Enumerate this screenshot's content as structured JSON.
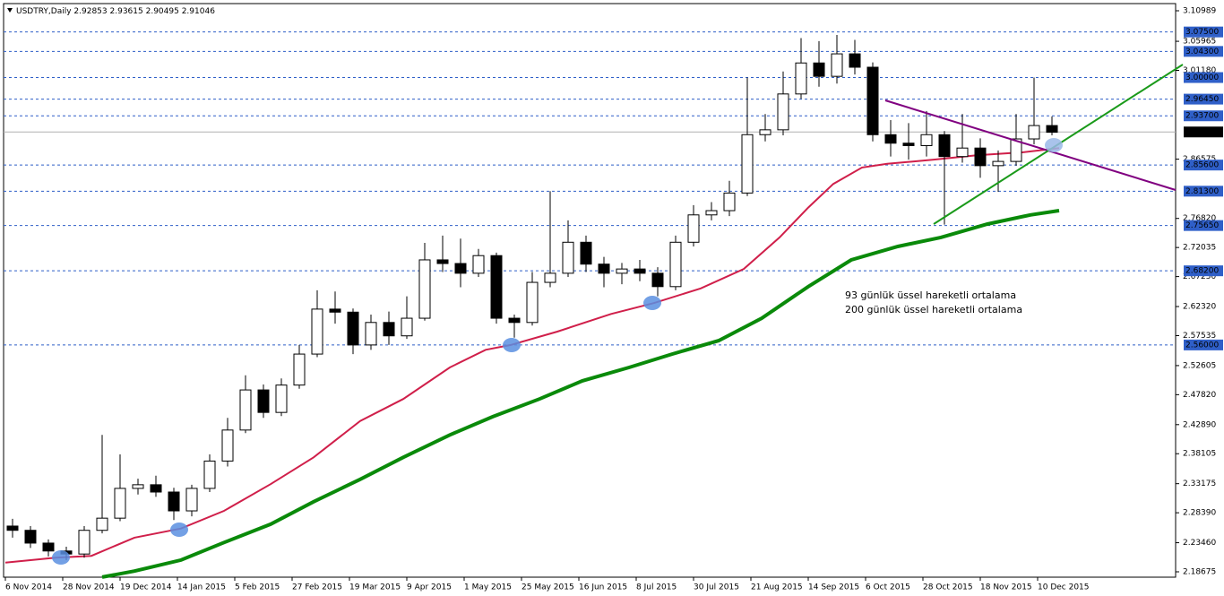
{
  "chart_data": {
    "type": "candlestick",
    "title": "USDTRY,Daily",
    "header_values": [
      2.92853,
      2.93615,
      2.90495,
      2.91046
    ],
    "x": [
      2,
      7,
      12,
      17,
      22,
      27,
      32,
      37,
      42,
      47,
      52,
      57,
      62,
      67,
      72,
      77,
      82,
      87,
      92,
      97,
      102,
      107,
      112,
      117,
      122,
      127,
      132,
      137,
      142,
      147,
      152,
      157,
      162,
      167,
      172,
      177,
      182,
      187,
      192,
      197,
      202,
      207,
      212,
      217,
      222,
      227,
      232,
      237,
      242,
      247,
      252,
      257,
      262,
      267,
      272,
      277,
      282,
      287,
      292
    ],
    "open": [
      2.262,
      2.255,
      2.234,
      2.221,
      2.216,
      2.255,
      2.275,
      2.324,
      2.33,
      2.318,
      2.287,
      2.324,
      2.369,
      2.42,
      2.486,
      2.449,
      2.494,
      2.545,
      2.619,
      2.614,
      2.56,
      2.597,
      2.575,
      2.604,
      2.7,
      2.694,
      2.678,
      2.707,
      2.604,
      2.597,
      2.663,
      2.678,
      2.729,
      2.693,
      2.678,
      2.685,
      2.678,
      2.656,
      2.729,
      2.774,
      2.781,
      2.81,
      2.906,
      2.914,
      2.973,
      3.024,
      3.002,
      3.039,
      3.017,
      2.906,
      2.892,
      2.888,
      2.906,
      2.87,
      2.884,
      2.855,
      2.862,
      2.899,
      2.921
    ],
    "high": [
      2.274,
      2.262,
      2.24,
      2.228,
      2.262,
      2.412,
      2.38,
      2.34,
      2.345,
      2.325,
      2.33,
      2.38,
      2.44,
      2.51,
      2.495,
      2.505,
      2.56,
      2.65,
      2.648,
      2.62,
      2.61,
      2.615,
      2.64,
      2.728,
      2.74,
      2.735,
      2.718,
      2.712,
      2.61,
      2.68,
      2.813,
      2.765,
      2.74,
      2.705,
      2.695,
      2.7,
      2.688,
      2.74,
      2.79,
      2.795,
      2.83,
      3.0,
      2.94,
      3.01,
      3.065,
      3.06,
      3.07,
      3.062,
      3.025,
      2.93,
      2.925,
      2.945,
      2.912,
      2.94,
      2.9,
      2.88,
      2.94,
      3.0,
      2.936
    ],
    "low": [
      2.243,
      2.226,
      2.212,
      2.206,
      2.21,
      2.25,
      2.27,
      2.314,
      2.31,
      2.272,
      2.278,
      2.318,
      2.36,
      2.415,
      2.44,
      2.443,
      2.488,
      2.54,
      2.595,
      2.545,
      2.552,
      2.56,
      2.57,
      2.6,
      2.68,
      2.655,
      2.672,
      2.595,
      2.572,
      2.592,
      2.655,
      2.672,
      2.68,
      2.655,
      2.66,
      2.665,
      2.64,
      2.65,
      2.722,
      2.765,
      2.772,
      2.805,
      2.895,
      2.905,
      2.965,
      2.985,
      2.99,
      3.005,
      2.895,
      2.87,
      2.865,
      2.87,
      2.758,
      2.86,
      2.835,
      2.812,
      2.855,
      2.89,
      2.905
    ],
    "close": [
      2.255,
      2.234,
      2.221,
      2.216,
      2.255,
      2.275,
      2.324,
      2.33,
      2.318,
      2.287,
      2.324,
      2.369,
      2.42,
      2.486,
      2.449,
      2.494,
      2.545,
      2.619,
      2.614,
      2.56,
      2.597,
      2.575,
      2.604,
      2.7,
      2.694,
      2.678,
      2.707,
      2.604,
      2.597,
      2.663,
      2.678,
      2.729,
      2.693,
      2.678,
      2.685,
      2.678,
      2.656,
      2.729,
      2.774,
      2.781,
      2.81,
      2.906,
      2.914,
      2.973,
      3.024,
      3.002,
      3.039,
      3.017,
      2.906,
      2.892,
      2.888,
      2.906,
      2.87,
      2.884,
      2.855,
      2.862,
      2.899,
      2.921,
      2.91
    ],
    "up_color": "#ffffff",
    "down_color": "#000000",
    "series": [
      {
        "name": "93 günlük üssel hareketli ortalama",
        "color": "#d01f4a",
        "x": [
          0,
          14,
          24,
          36,
          49,
          61,
          74,
          86,
          99,
          111,
          124,
          134,
          141,
          154,
          169,
          181,
          194,
          206,
          216,
          224,
          231,
          239,
          246,
          259,
          271,
          284,
          294
        ],
        "values": [
          2.202,
          2.21,
          2.213,
          2.243,
          2.258,
          2.287,
          2.331,
          2.375,
          2.435,
          2.471,
          2.523,
          2.552,
          2.56,
          2.582,
          2.611,
          2.629,
          2.653,
          2.685,
          2.737,
          2.786,
          2.825,
          2.852,
          2.858,
          2.865,
          2.872,
          2.877,
          2.884
        ]
      },
      {
        "name": "200 günlük üssel hareketli ortalama",
        "color": "#0a8a0a",
        "x": [
          27,
          36,
          49,
          61,
          74,
          86,
          99,
          111,
          124,
          136,
          149,
          161,
          174,
          186,
          199,
          211,
          224,
          236,
          249,
          261,
          274,
          286,
          294
        ],
        "values": [
          2.178,
          2.188,
          2.206,
          2.235,
          2.265,
          2.302,
          2.339,
          2.375,
          2.412,
          2.442,
          2.471,
          2.501,
          2.523,
          2.545,
          2.567,
          2.604,
          2.656,
          2.7,
          2.722,
          2.737,
          2.759,
          2.774,
          2.781
        ]
      }
    ],
    "xlim": [
      -0.5,
      326.5
    ],
    "ylim": [
      2.1779,
      3.1217
    ],
    "xticks": [
      {
        "value": 0,
        "label": "6 Nov 2014"
      },
      {
        "value": 16,
        "label": "28 Nov 2014"
      },
      {
        "value": 32,
        "label": "19 Dec 2014"
      },
      {
        "value": 48,
        "label": "14 Jan 2015"
      },
      {
        "value": 64,
        "label": "5 Feb 2015"
      },
      {
        "value": 80,
        "label": "27 Feb 2015"
      },
      {
        "value": 96,
        "label": "19 Mar 2015"
      },
      {
        "value": 112,
        "label": "9 Apr 2015"
      },
      {
        "value": 128,
        "label": "1 May 2015"
      },
      {
        "value": 144,
        "label": "25 May 2015"
      },
      {
        "value": 160,
        "label": "16 Jun 2015"
      },
      {
        "value": 176,
        "label": "8 Jul 2015"
      },
      {
        "value": 192,
        "label": "30 Jul 2015"
      },
      {
        "value": 208,
        "label": "21 Aug 2015"
      },
      {
        "value": 224,
        "label": "14 Sep 2015"
      },
      {
        "value": 240,
        "label": "6 Oct 2015"
      },
      {
        "value": 256,
        "label": "28 Oct 2015"
      },
      {
        "value": 272,
        "label": "18 Nov 2015"
      },
      {
        "value": 288,
        "label": "10 Dec 2015"
      }
    ],
    "yticks": [
      3.10989,
      3.05965,
      {
        "value": 3.0118,
        "label": "3.01180"
      },
      2.86575,
      {
        "value": 2.7682,
        "label": "2.76820"
      },
      2.72035,
      {
        "value": 2.6725,
        "label": "2.67250"
      },
      {
        "value": 2.6232,
        "label": "2.62320"
      },
      2.57535,
      2.52605,
      {
        "value": 2.4782,
        "label": "2.47820"
      },
      {
        "value": 2.4289,
        "label": "2.42890"
      },
      2.38105,
      2.33175,
      {
        "value": 2.2839,
        "label": "2.28390"
      },
      {
        "value": 2.2346,
        "label": "2.23460"
      },
      2.18675
    ],
    "levels": [
      {
        "value": 3.075,
        "label": "3.07500"
      },
      {
        "value": 3.043,
        "label": "3.04300"
      },
      {
        "value": 3.0,
        "label": "3.00000"
      },
      {
        "value": 2.9645,
        "label": "2.96450"
      },
      {
        "value": 2.937,
        "label": "2.93700"
      },
      {
        "value": 2.856,
        "label": "2.85600"
      },
      {
        "value": 2.813,
        "label": "2.81300"
      },
      {
        "value": 2.7565,
        "label": "2.75650"
      },
      {
        "value": 2.682,
        "label": "2.68200"
      },
      {
        "value": 2.56,
        "label": "2.56000"
      }
    ],
    "level_color": "#2f5fc8",
    "current_price": 2.91046,
    "grid": false
  }
}
